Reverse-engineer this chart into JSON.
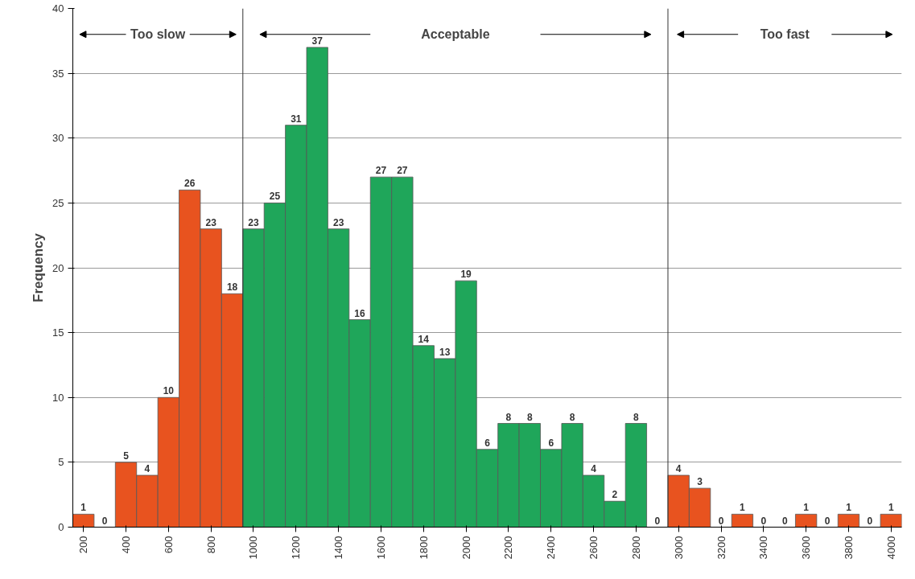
{
  "chart_data": {
    "type": "histogram",
    "ylabel": "Frequency",
    "bins": [
      150,
      250,
      350,
      450,
      550,
      650,
      750,
      850,
      950,
      1050,
      1150,
      1250,
      1350,
      1450,
      1550,
      1650,
      1750,
      1850,
      1950,
      2050,
      2150,
      2250,
      2350,
      2450,
      2550,
      2650,
      2750,
      2850,
      2950,
      3050,
      3150,
      3250,
      3350,
      3450,
      3550,
      3650,
      3750,
      3850,
      3950,
      4050
    ],
    "values": [
      1,
      0,
      5,
      4,
      10,
      26,
      23,
      18,
      23,
      25,
      31,
      37,
      23,
      16,
      27,
      27,
      14,
      13,
      19,
      6,
      8,
      8,
      6,
      8,
      4,
      2,
      8,
      0,
      4,
      3,
      0,
      1,
      0,
      0,
      1,
      0,
      1,
      0,
      1
    ],
    "colors": [
      "#e8531f",
      "#e8531f",
      "#e8531f",
      "#e8531f",
      "#e8531f",
      "#e8531f",
      "#e8531f",
      "#e8531f",
      "#1fa65a",
      "#1fa65a",
      "#1fa65a",
      "#1fa65a",
      "#1fa65a",
      "#1fa65a",
      "#1fa65a",
      "#1fa65a",
      "#1fa65a",
      "#1fa65a",
      "#1fa65a",
      "#1fa65a",
      "#1fa65a",
      "#1fa65a",
      "#1fa65a",
      "#1fa65a",
      "#1fa65a",
      "#1fa65a",
      "#1fa65a",
      "#1fa65a",
      "#e8531f",
      "#e8531f",
      "#e8531f",
      "#e8531f",
      "#e8531f",
      "#e8531f",
      "#e8531f",
      "#e8531f",
      "#e8531f",
      "#e8531f",
      "#e8531f"
    ],
    "xlim": [
      150,
      4050
    ],
    "ylim": [
      0,
      40
    ],
    "xticks": [
      200,
      400,
      600,
      800,
      1000,
      1200,
      1400,
      1600,
      1800,
      2000,
      2200,
      2400,
      2600,
      2800,
      3000,
      3200,
      3400,
      3600,
      3800,
      4000
    ],
    "yticks": [
      0,
      5,
      10,
      15,
      20,
      25,
      30,
      35,
      40
    ],
    "grid": "y",
    "data_labels": true,
    "ref_lines": [
      {
        "axis": "x",
        "value": 950,
        "color": "#333333"
      },
      {
        "axis": "x",
        "value": 2950,
        "color": "#333333"
      }
    ],
    "annotations": [
      "Too slow",
      "Acceptable",
      "Too fast"
    ]
  }
}
